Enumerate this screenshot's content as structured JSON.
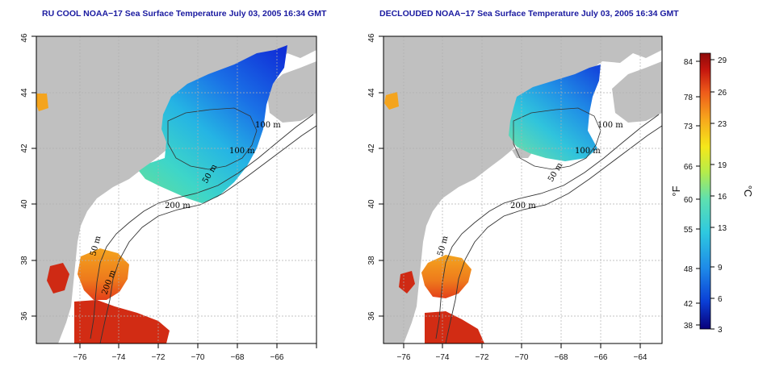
{
  "left_map": {
    "title": "RU COOL NOAA−17 Sea Surface Temperature July 03, 2005 16:34 GMT",
    "contour_labels": [
      "100 m",
      "100 m",
      "50 m",
      "200 m",
      "50 m",
      "200 m"
    ]
  },
  "right_map": {
    "title": "DECLOUDED NOAA−17 Sea Surface Temperature July 03, 2005 16:34 GMT",
    "contour_labels": [
      "100 m",
      "100 m",
      "50 m",
      "200 m",
      "50 m"
    ]
  },
  "axes": {
    "lon_ticks": [
      "−76",
      "−74",
      "−72",
      "−70",
      "−68",
      "−66",
      "−64"
    ],
    "lat_ticks": [
      "36",
      "38",
      "40",
      "42",
      "44",
      "46"
    ],
    "lon_range": [
      -77.2,
      -63
    ],
    "lat_range": [
      35,
      46
    ]
  },
  "colorbar": {
    "fahrenheit_label": "°F",
    "celsius_label": "°C",
    "fahrenheit_ticks": [
      "84",
      "78",
      "73",
      "66",
      "60",
      "55",
      "48",
      "42",
      "38"
    ],
    "celsius_ticks": [
      "29",
      "26",
      "23",
      "19",
      "16",
      "13",
      "9",
      "6",
      "3"
    ],
    "colors": [
      "#08007a",
      "#0a3fd6",
      "#1e8ae8",
      "#2ec9e0",
      "#5ee0b0",
      "#b6ec4a",
      "#f5e81a",
      "#f7a81c",
      "#ee5a1a",
      "#c4160e",
      "#8e0a0a"
    ]
  },
  "colors": {
    "land": "#c0c0c0",
    "ocean": "#ffffff",
    "grid": "#b0b0b0",
    "title": "#1a1aa0"
  }
}
